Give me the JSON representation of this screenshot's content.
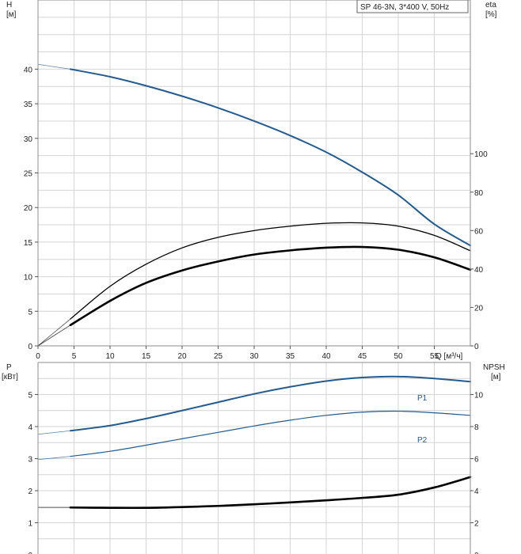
{
  "colors": {
    "blue": "#245b8f",
    "black": "#000000"
  },
  "chart_data": [
    {
      "type": "line",
      "title": "SP 46-3N, 3*400 V, 50Hz",
      "xlabel": "Q [м³/ч]",
      "ylabel_left": [
        "H",
        "[м]"
      ],
      "ylabel_right": [
        "eta",
        "[%]"
      ],
      "xlim": [
        0,
        60
      ],
      "ylim_left": [
        0,
        50
      ],
      "ylim_right": [
        0,
        180
      ],
      "x_ticks": [
        0,
        5,
        10,
        15,
        20,
        25,
        30,
        35,
        40,
        45,
        50,
        55
      ],
      "y_ticks_left": [
        0,
        5,
        10,
        15,
        20,
        25,
        30,
        35,
        40
      ],
      "y_ticks_right": [
        0,
        20,
        40,
        60,
        80,
        100
      ],
      "grid": true,
      "series": [
        {
          "axis": "left",
          "color": "blue",
          "width": 2,
          "solid": [
            [
              4.5,
              40
            ],
            [
              10,
              38.9
            ],
            [
              15,
              37.6
            ],
            [
              20,
              36.1
            ],
            [
              25,
              34.4
            ],
            [
              30,
              32.5
            ],
            [
              35,
              30.4
            ],
            [
              40,
              28.0
            ],
            [
              45,
              25.1
            ],
            [
              50,
              21.8
            ],
            [
              55,
              17.6
            ],
            [
              60,
              14.5
            ]
          ],
          "extrapolated": [
            [
              0,
              40.7
            ],
            [
              4.5,
              40
            ]
          ]
        },
        {
          "axis": "right",
          "color": "black",
          "width": 1.3,
          "solid": [
            [
              4.5,
              14.0
            ],
            [
              10,
              31.0
            ],
            [
              15,
              42.5
            ],
            [
              20,
              51.0
            ],
            [
              25,
              56.5
            ],
            [
              30,
              60.0
            ],
            [
              35,
              62.3
            ],
            [
              40,
              63.8
            ],
            [
              45,
              64.0
            ],
            [
              50,
              62.3
            ],
            [
              55,
              57.5
            ],
            [
              60,
              49.5
            ]
          ],
          "extrapolated": [
            [
              0,
              0
            ],
            [
              4.5,
              14.0
            ]
          ]
        },
        {
          "axis": "left",
          "color": "black",
          "width": 2.6,
          "solid": [
            [
              4.5,
              3.0
            ],
            [
              10,
              6.5
            ],
            [
              15,
              9.1
            ],
            [
              20,
              10.9
            ],
            [
              25,
              12.2
            ],
            [
              30,
              13.2
            ],
            [
              35,
              13.8
            ],
            [
              40,
              14.2
            ],
            [
              45,
              14.3
            ],
            [
              50,
              13.9
            ],
            [
              55,
              12.8
            ],
            [
              60,
              11.0
            ]
          ],
          "extrapolated": [
            [
              0,
              0
            ],
            [
              4.5,
              3.0
            ]
          ]
        }
      ]
    },
    {
      "type": "line",
      "xlim": [
        0,
        60
      ],
      "ylabel_left": [
        "P",
        "[кВт]"
      ],
      "ylabel_right": [
        "NPSH",
        "[м]"
      ],
      "ylim_left": [
        0,
        6.0
      ],
      "ylim_right": [
        0,
        12.0
      ],
      "y_ticks_left": [
        0,
        1,
        2,
        3,
        4,
        5
      ],
      "y_ticks_right": [
        0,
        2,
        4,
        6,
        8,
        10
      ],
      "grid": true,
      "series": [
        {
          "name": "P1",
          "axis": "left",
          "color": "blue",
          "width": 2,
          "solid": [
            [
              4.5,
              3.87
            ],
            [
              10,
              4.03
            ],
            [
              15,
              4.25
            ],
            [
              20,
              4.5
            ],
            [
              25,
              4.76
            ],
            [
              30,
              5.02
            ],
            [
              35,
              5.24
            ],
            [
              40,
              5.42
            ],
            [
              45,
              5.53
            ],
            [
              50,
              5.56
            ],
            [
              55,
              5.5
            ],
            [
              60,
              5.4
            ]
          ],
          "extrapolated": [
            [
              0,
              3.76
            ],
            [
              4.5,
              3.87
            ]
          ]
        },
        {
          "name": "P2",
          "axis": "left",
          "color": "blue",
          "width": 1.2,
          "solid": [
            [
              4.5,
              3.07
            ],
            [
              10,
              3.23
            ],
            [
              15,
              3.42
            ],
            [
              20,
              3.62
            ],
            [
              25,
              3.82
            ],
            [
              30,
              4.02
            ],
            [
              35,
              4.2
            ],
            [
              40,
              4.35
            ],
            [
              45,
              4.45
            ],
            [
              50,
              4.48
            ],
            [
              55,
              4.43
            ],
            [
              60,
              4.35
            ]
          ],
          "extrapolated": [
            [
              0,
              2.97
            ],
            [
              4.5,
              3.07
            ]
          ]
        },
        {
          "axis": "right",
          "color": "black",
          "width": 2.6,
          "solid": [
            [
              4.5,
              2.95
            ],
            [
              10,
              2.93
            ],
            [
              15,
              2.93
            ],
            [
              20,
              2.98
            ],
            [
              25,
              3.05
            ],
            [
              30,
              3.15
            ],
            [
              35,
              3.27
            ],
            [
              40,
              3.4
            ],
            [
              45,
              3.55
            ],
            [
              50,
              3.75
            ],
            [
              55,
              4.2
            ],
            [
              60,
              4.85
            ]
          ],
          "extrapolated": [
            [
              0,
              2.95
            ],
            [
              4.5,
              2.95
            ]
          ]
        }
      ]
    }
  ]
}
